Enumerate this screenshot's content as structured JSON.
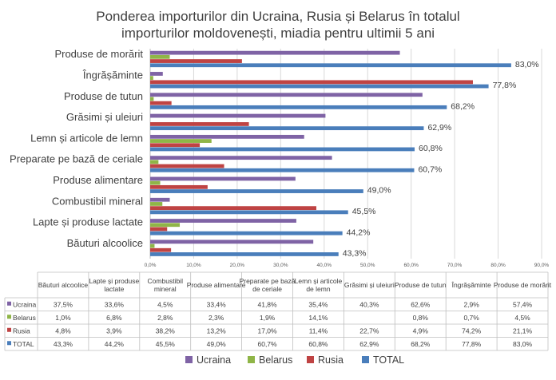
{
  "chart_data": {
    "type": "bar",
    "orientation": "horizontal",
    "title_lines": [
      "Ponderea importurilor din Ucraina, Rusia și Belarus în totalul",
      "importurilor moldovenești, miadia pentru ultimii 5 ani"
    ],
    "categories": [
      "Produse de morărit",
      "Îngrășăminte",
      "Produse de tutun",
      "Grăsimi și uleiuri",
      "Lemn și articole de lemn",
      "Preparate pe bază de ceriale",
      "Produse alimentare",
      "Combustibil mineral",
      "Lapte și produse lactate",
      "Băuturi alcoolice"
    ],
    "series": [
      {
        "name": "Ucraina",
        "color": "#7f63a5",
        "values": [
          57.4,
          2.9,
          62.6,
          40.3,
          35.4,
          41.8,
          33.4,
          4.5,
          33.6,
          37.5
        ]
      },
      {
        "name": "Belarus",
        "color": "#8fb547",
        "values": [
          4.5,
          0.7,
          0.8,
          null,
          14.1,
          1.9,
          2.3,
          2.8,
          6.8,
          1.0
        ]
      },
      {
        "name": "Rusia",
        "color": "#bf4343",
        "values": [
          21.1,
          74.2,
          4.9,
          22.7,
          11.4,
          17.0,
          13.2,
          38.2,
          3.9,
          4.8
        ]
      },
      {
        "name": "TOTAL",
        "color": "#4a7ebb",
        "values": [
          83.0,
          77.8,
          68.2,
          62.9,
          60.8,
          60.7,
          49.0,
          45.5,
          44.2,
          43.3
        ]
      }
    ],
    "total_labels": [
      "83,0%",
      "77,8%",
      "68,2%",
      "62,9%",
      "60,8%",
      "60,7%",
      "49,0%",
      "45,5%",
      "44,2%",
      "43,3%"
    ],
    "x_ticks": [
      "0,0%",
      "10,0%",
      "20,0%",
      "30,0%",
      "40,0%",
      "50,0%",
      "60,0%",
      "70,0%",
      "80,0%",
      "90,0%"
    ],
    "xlim": [
      0,
      90
    ],
    "grid": true,
    "legend": {
      "position": "bottom",
      "items": [
        "Ucraina",
        "Belarus",
        "Rusia",
        "TOTAL"
      ]
    },
    "data_table": {
      "columns": [
        "Băuturi alcoolice",
        "Lapte și produse lactate",
        "Combustibil mineral",
        "Produse alimentare",
        "Preparate pe bază de ceriale",
        "Lemn și articole de lemn",
        "Grăsimi și uleiuri",
        "Produse de tutun",
        "Îngrășăminte",
        "Produse de morărit"
      ],
      "rows": [
        {
          "name": "Ucraina",
          "cells": [
            "37,5%",
            "33,6%",
            "4,5%",
            "33,4%",
            "41,8%",
            "35,4%",
            "40,3%",
            "62,6%",
            "2,9%",
            "57,4%"
          ]
        },
        {
          "name": "Belarus",
          "cells": [
            "1,0%",
            "6,8%",
            "2,8%",
            "2,3%",
            "1,9%",
            "14,1%",
            "",
            "0,8%",
            "0,7%",
            "4,5%"
          ]
        },
        {
          "name": "Rusia",
          "cells": [
            "4,8%",
            "3,9%",
            "38,2%",
            "13,2%",
            "17,0%",
            "11,4%",
            "22,7%",
            "4,9%",
            "74,2%",
            "21,1%"
          ]
        },
        {
          "name": "TOTAL",
          "cells": [
            "43,3%",
            "44,2%",
            "45,5%",
            "49,0%",
            "60,7%",
            "60,8%",
            "62,9%",
            "68,2%",
            "77,8%",
            "83,0%"
          ]
        }
      ]
    }
  }
}
